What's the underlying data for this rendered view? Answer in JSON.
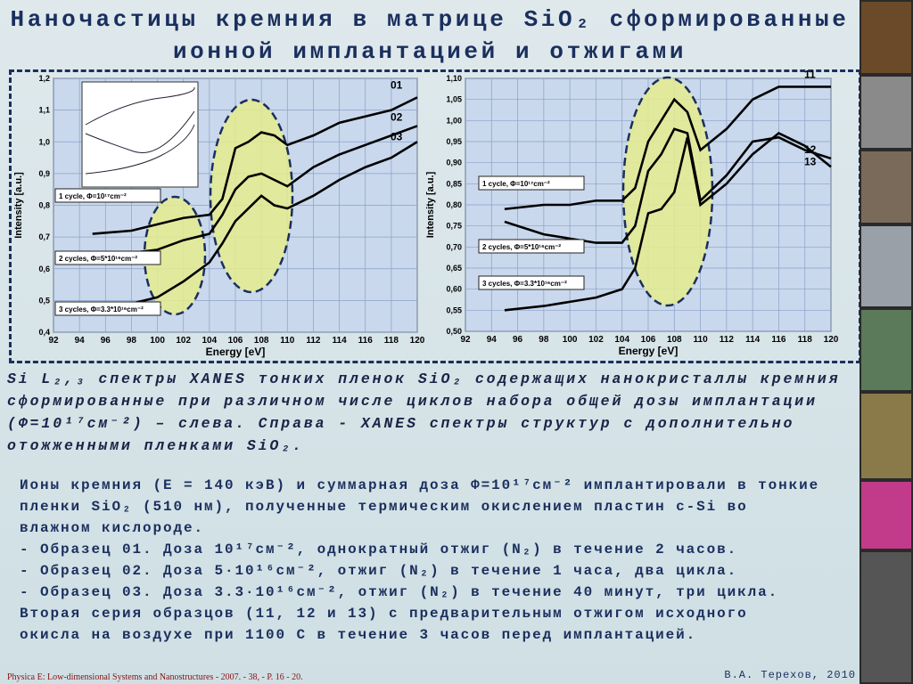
{
  "title": [
    "Наночастицы кремния в матрице SiO₂ сформированные",
    "ионной имплантацией и отжигами"
  ],
  "chart_data": [
    {
      "type": "line",
      "xlabel": "Energy [eV]",
      "ylabel": "Intensity [a.u.]",
      "x": [
        95,
        98,
        100,
        102,
        104,
        105,
        106,
        107,
        108,
        109,
        110,
        112,
        114,
        116,
        118,
        120
      ],
      "series": [
        {
          "name": "01",
          "color": "#000000",
          "values": [
            0.71,
            0.72,
            0.74,
            0.76,
            0.77,
            0.82,
            0.98,
            1.0,
            1.03,
            1.02,
            0.99,
            1.02,
            1.06,
            1.08,
            1.1,
            1.14
          ]
        },
        {
          "name": "02",
          "color": "#000000",
          "values": [
            0.65,
            0.65,
            0.66,
            0.69,
            0.71,
            0.77,
            0.85,
            0.89,
            0.9,
            0.88,
            0.86,
            0.92,
            0.96,
            0.99,
            1.02,
            1.05
          ]
        },
        {
          "name": "03",
          "color": "#000000",
          "values": [
            0.48,
            0.49,
            0.51,
            0.56,
            0.62,
            0.68,
            0.75,
            0.79,
            0.83,
            0.8,
            0.79,
            0.83,
            0.88,
            0.92,
            0.95,
            1.0
          ]
        }
      ],
      "annotations": [
        "1 cycle, Φ=10¹⁷cm⁻²",
        "2 cycles, Φ=5*10¹⁶cm⁻²",
        "3 cycles, Φ=3.3*10¹⁶cm⁻²"
      ],
      "xlim": [
        92,
        120
      ],
      "xticks": [
        92,
        94,
        96,
        98,
        100,
        102,
        104,
        106,
        108,
        110,
        112,
        114,
        116,
        118,
        120
      ],
      "ylim": [
        0.4,
        1.2
      ],
      "yticks": [
        {
          "value": 0.4,
          "label": "0,4"
        },
        {
          "value": 0.5,
          "label": "0,5"
        },
        {
          "value": 0.6,
          "label": "0,6"
        },
        {
          "value": 0.7,
          "label": "0,7"
        },
        {
          "value": 0.8,
          "label": "0,8"
        },
        {
          "value": 0.9,
          "label": "0,9"
        },
        {
          "value": 1.0,
          "label": "1,0"
        },
        {
          "value": 1.1,
          "label": "1,1"
        },
        {
          "value": 1.2,
          "label": "1,2"
        }
      ],
      "grid": true
    },
    {
      "type": "line",
      "xlabel": "Energy [eV]",
      "ylabel": "Intensity [a.u.]",
      "x": [
        95,
        98,
        100,
        102,
        104,
        105,
        106,
        107,
        108,
        109,
        110,
        112,
        114,
        116,
        118,
        120
      ],
      "series": [
        {
          "name": "11",
          "color": "#000000",
          "values": [
            0.79,
            0.8,
            0.8,
            0.81,
            0.81,
            0.84,
            0.95,
            1.0,
            1.05,
            1.02,
            0.93,
            0.98,
            1.05,
            1.08,
            1.08,
            1.08
          ]
        },
        {
          "name": "12",
          "color": "#000000",
          "values": [
            0.76,
            0.73,
            0.72,
            0.71,
            0.71,
            0.75,
            0.88,
            0.92,
            0.98,
            0.97,
            0.81,
            0.87,
            0.95,
            0.96,
            0.93,
            0.91
          ]
        },
        {
          "name": "13",
          "color": "#000000",
          "values": [
            0.55,
            0.56,
            0.57,
            0.58,
            0.6,
            0.65,
            0.78,
            0.79,
            0.83,
            0.96,
            0.8,
            0.85,
            0.92,
            0.97,
            0.94,
            0.89
          ]
        }
      ],
      "annotations": [
        "1 cycle, Φ=10¹⁷cm⁻²",
        "2 cycles, Φ=5*10¹⁶cm⁻²",
        "3 cycles, Φ=3.3*10¹⁶cm⁻²"
      ],
      "xlim": [
        92,
        120
      ],
      "xticks": [
        92,
        94,
        96,
        98,
        100,
        102,
        104,
        106,
        108,
        110,
        112,
        114,
        116,
        118,
        120
      ],
      "ylim": [
        0.5,
        1.1
      ],
      "yticks": [
        {
          "value": 0.5,
          "label": "0,50"
        },
        {
          "value": 0.55,
          "label": "0,55"
        },
        {
          "value": 0.6,
          "label": "0,60"
        },
        {
          "value": 0.65,
          "label": "0,65"
        },
        {
          "value": 0.7,
          "label": "0,70"
        },
        {
          "value": 0.75,
          "label": "0,75"
        },
        {
          "value": 0.8,
          "label": "0,80"
        },
        {
          "value": 0.85,
          "label": "0,85"
        },
        {
          "value": 0.9,
          "label": "0,90"
        },
        {
          "value": 0.95,
          "label": "0,95"
        },
        {
          "value": 1.0,
          "label": "1,00"
        },
        {
          "value": 1.05,
          "label": "1,05"
        },
        {
          "value": 1.1,
          "label": "1,10"
        }
      ],
      "grid": true
    }
  ],
  "caption": [
    "Si L₂,₃ спектры XANES тонких пленок SiO₂ содержащих нанокристаллы кремния",
    "сформированные при различном числе циклов набора общей дозы имплантации",
    "(Φ=10¹⁷см⁻²) – слева. Справа - XANES спектры структур с дополнительно",
    "отожженными пленками SiO₂."
  ],
  "body": [
    "Ионы кремния (E = 140 кэВ) и суммарная доза Φ=10¹⁷см⁻² имплантировали в тонкие",
    "пленки SiO₂ (510 нм), полученные термическим окислением пластин c-Si во",
    "влажном кислороде.",
    "- Образец 01. Доза 10¹⁷см⁻², однократный отжиг (N₂) в течение 2 часов.",
    "- Образец 02. Доза 5·10¹⁶см⁻², отжиг (N₂) в течение 1 часа, два цикла.",
    "- Образец 03. Доза 3.3·10¹⁶см⁻², отжиг (N₂) в течение 40 минут, три цикла.",
    "Вторая серия образцов (11, 12 и 13) с предварительным отжигом исходного",
    "окисла на воздухе при 1100  С в течение 3 часов перед имплантацией."
  ],
  "footer": {
    "source": "Physica E: Low-dimensional Systems and Nanostructures - 2007. - 38, - P. 16 - 20.",
    "author": "В.А. Терехов, 2010"
  }
}
